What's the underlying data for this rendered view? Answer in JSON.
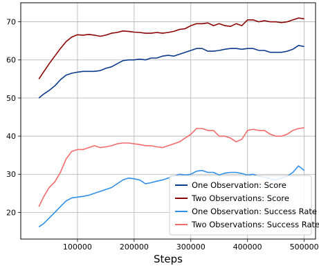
{
  "chart_data": {
    "type": "line",
    "title": "",
    "xlabel": "Steps",
    "ylabel": "",
    "xlim": [
      0,
      520000
    ],
    "ylim": [
      13,
      75
    ],
    "xticks": [
      100000,
      200000,
      300000,
      400000,
      500000
    ],
    "xtick_labels": [
      "100000",
      "200000",
      "300000",
      "400000",
      "500000"
    ],
    "yticks": [
      20,
      30,
      40,
      50,
      60,
      70
    ],
    "ytick_labels": [
      "20",
      "30",
      "40",
      "50",
      "60",
      "70"
    ],
    "grid": true,
    "legend_position": "lower-right",
    "series": [
      {
        "name": "One Observation: Score",
        "color": "#0b3a8c",
        "x": [
          32000,
          40000,
          50000,
          60000,
          70000,
          80000,
          90000,
          100000,
          110000,
          120000,
          130000,
          140000,
          150000,
          160000,
          170000,
          180000,
          190000,
          200000,
          210000,
          220000,
          230000,
          240000,
          250000,
          260000,
          270000,
          280000,
          290000,
          300000,
          310000,
          320000,
          330000,
          340000,
          350000,
          360000,
          370000,
          380000,
          390000,
          400000,
          410000,
          420000,
          430000,
          440000,
          450000,
          460000,
          470000,
          480000,
          490000,
          500000
        ],
        "y": [
          50.0,
          51.0,
          52.0,
          53.2,
          54.8,
          56.0,
          56.5,
          56.8,
          57.0,
          57.0,
          57.0,
          57.2,
          57.8,
          58.2,
          59.0,
          59.8,
          60.0,
          60.0,
          60.2,
          60.0,
          60.5,
          60.5,
          61.0,
          61.2,
          61.0,
          61.5,
          62.0,
          62.5,
          63.0,
          63.0,
          62.3,
          62.3,
          62.5,
          62.8,
          63.0,
          63.0,
          62.8,
          63.0,
          63.0,
          62.5,
          62.5,
          62.0,
          62.0,
          62.0,
          62.3,
          62.8,
          63.8,
          63.5
        ]
      },
      {
        "name": "Two Observations: Score",
        "color": "#8b0000",
        "x": [
          32000,
          40000,
          50000,
          60000,
          70000,
          80000,
          90000,
          100000,
          110000,
          120000,
          130000,
          140000,
          150000,
          160000,
          170000,
          180000,
          190000,
          200000,
          210000,
          220000,
          230000,
          240000,
          250000,
          260000,
          270000,
          280000,
          290000,
          300000,
          310000,
          320000,
          330000,
          340000,
          350000,
          360000,
          370000,
          380000,
          390000,
          400000,
          410000,
          420000,
          430000,
          440000,
          450000,
          460000,
          470000,
          480000,
          490000,
          500000
        ],
        "y": [
          55.0,
          56.8,
          59.0,
          61.0,
          63.0,
          64.8,
          66.0,
          66.6,
          66.5,
          66.7,
          66.5,
          66.2,
          66.5,
          67.0,
          67.2,
          67.6,
          67.5,
          67.3,
          67.2,
          67.0,
          67.0,
          67.2,
          67.0,
          67.2,
          67.5,
          68.0,
          68.2,
          69.0,
          69.5,
          69.5,
          69.7,
          69.0,
          69.5,
          69.0,
          68.8,
          69.5,
          69.0,
          70.5,
          70.5,
          70.0,
          70.3,
          70.0,
          70.0,
          69.8,
          70.0,
          70.5,
          71.0,
          70.8
        ]
      },
      {
        "name": "One Observation: Success Rate",
        "color": "#2e8ee8",
        "x": [
          32000,
          40000,
          50000,
          60000,
          70000,
          80000,
          90000,
          100000,
          110000,
          120000,
          130000,
          140000,
          150000,
          160000,
          170000,
          180000,
          190000,
          200000,
          210000,
          220000,
          230000,
          240000,
          250000,
          260000,
          270000,
          280000,
          290000,
          300000,
          310000,
          320000,
          330000,
          340000,
          350000,
          360000,
          370000,
          380000,
          390000,
          400000,
          410000,
          420000,
          430000,
          440000,
          450000,
          460000,
          470000,
          480000,
          490000,
          500000
        ],
        "y": [
          16.2,
          17.0,
          18.5,
          20.0,
          21.5,
          23.0,
          23.8,
          24.0,
          24.2,
          24.5,
          25.0,
          25.5,
          26.0,
          26.5,
          27.5,
          28.5,
          29.0,
          28.8,
          28.5,
          27.5,
          27.8,
          28.2,
          28.5,
          29.0,
          29.5,
          30.0,
          29.8,
          30.0,
          30.8,
          31.0,
          30.5,
          30.5,
          29.8,
          30.3,
          30.5,
          30.5,
          30.2,
          29.8,
          30.0,
          29.5,
          29.2,
          28.8,
          28.5,
          29.0,
          29.5,
          30.5,
          32.2,
          31.0
        ]
      },
      {
        "name": "Two Observations: Success Rate",
        "color": "#f46a6a",
        "x": [
          32000,
          40000,
          50000,
          60000,
          70000,
          80000,
          90000,
          100000,
          110000,
          120000,
          130000,
          140000,
          150000,
          160000,
          170000,
          180000,
          190000,
          200000,
          210000,
          220000,
          230000,
          240000,
          250000,
          260000,
          270000,
          280000,
          290000,
          300000,
          310000,
          320000,
          330000,
          340000,
          350000,
          360000,
          370000,
          380000,
          390000,
          400000,
          410000,
          420000,
          430000,
          440000,
          450000,
          460000,
          470000,
          480000,
          490000,
          500000
        ],
        "y": [
          21.5,
          24.0,
          26.5,
          28.0,
          30.5,
          34.0,
          36.0,
          36.5,
          36.5,
          37.0,
          37.5,
          37.0,
          37.2,
          37.5,
          38.0,
          38.2,
          38.2,
          38.0,
          37.8,
          37.5,
          37.5,
          37.2,
          37.0,
          37.5,
          38.0,
          38.5,
          39.5,
          40.5,
          42.0,
          42.0,
          41.5,
          41.5,
          40.0,
          40.0,
          39.5,
          38.5,
          39.2,
          41.5,
          41.8,
          41.5,
          41.5,
          40.5,
          40.0,
          40.0,
          40.5,
          41.5,
          42.0,
          42.2
        ]
      }
    ]
  }
}
